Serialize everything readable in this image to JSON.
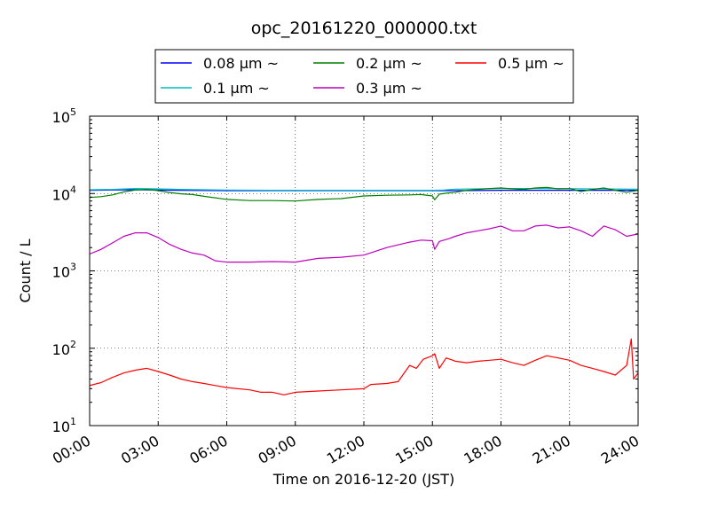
{
  "chart_data": {
    "type": "line",
    "title": "opc_20161220_000000.txt",
    "xlabel": "Time on 2016-12-20 (JST)",
    "ylabel": "Count / L",
    "x_unit": "hours",
    "xlim": [
      0,
      24
    ],
    "ylim": [
      10,
      100000
    ],
    "yscale": "log",
    "grid": true,
    "legend_position": "top-center, outside plot",
    "x_ticks": [
      {
        "v": 0,
        "label": "00:00"
      },
      {
        "v": 3,
        "label": "03:00"
      },
      {
        "v": 6,
        "label": "06:00"
      },
      {
        "v": 9,
        "label": "09:00"
      },
      {
        "v": 12,
        "label": "12:00"
      },
      {
        "v": 15,
        "label": "15:00"
      },
      {
        "v": 18,
        "label": "18:00"
      },
      {
        "v": 21,
        "label": "21:00"
      },
      {
        "v": 24,
        "label": "24:00"
      }
    ],
    "y_ticks": [
      {
        "v": 10,
        "base": "10",
        "exp": "1"
      },
      {
        "v": 100,
        "base": "10",
        "exp": "2"
      },
      {
        "v": 1000,
        "base": "10",
        "exp": "3"
      },
      {
        "v": 10000,
        "base": "10",
        "exp": "4"
      },
      {
        "v": 100000,
        "base": "10",
        "exp": "5"
      }
    ],
    "series": [
      {
        "name": "0.08 μm ~",
        "color": "#0000ff",
        "x": [
          0,
          2,
          4,
          6,
          8,
          10,
          12,
          14,
          16,
          18,
          20,
          22,
          24
        ],
        "y": [
          11000,
          11200,
          11000,
          10900,
          10900,
          10900,
          10900,
          10900,
          10900,
          11000,
          11000,
          11000,
          11000
        ]
      },
      {
        "name": "0.1 μm ~",
        "color": "#00bfbf",
        "x": [
          0,
          1,
          2,
          3,
          4,
          5,
          6,
          8,
          10,
          12,
          14,
          15,
          15.5,
          16,
          18,
          20,
          22,
          24
        ],
        "y": [
          11200,
          11300,
          11600,
          11500,
          11300,
          11200,
          11100,
          11000,
          11000,
          11000,
          11000,
          11000,
          11100,
          11400,
          11600,
          11600,
          11500,
          11400
        ]
      },
      {
        "name": "0.2 μm ~",
        "color": "#008000",
        "x": [
          0,
          0.5,
          1,
          1.5,
          2,
          2.5,
          3,
          3.5,
          4,
          4.5,
          5,
          6,
          7,
          8,
          9,
          10,
          11,
          12,
          13,
          14,
          14.5,
          15,
          15.1,
          15.3,
          15.6,
          16,
          16.5,
          17,
          17.5,
          18,
          18.5,
          19,
          19.5,
          20,
          20.5,
          21,
          21.5,
          22,
          22.5,
          23,
          23.5,
          24
        ],
        "y": [
          8900,
          9100,
          9600,
          10500,
          11100,
          11300,
          10900,
          10300,
          9900,
          9700,
          9200,
          8400,
          8100,
          8100,
          8000,
          8400,
          8600,
          9300,
          9500,
          9600,
          9700,
          9300,
          8300,
          9800,
          10100,
          10400,
          11000,
          11300,
          11600,
          11800,
          11500,
          11300,
          11800,
          12000,
          11500,
          11600,
          10600,
          11300,
          11800,
          11000,
          10400,
          11000
        ]
      },
      {
        "name": "0.3 μm ~",
        "color": "#bf00bf",
        "x": [
          0,
          0.5,
          1,
          1.5,
          2,
          2.5,
          3,
          3.5,
          4,
          4.5,
          5,
          5.5,
          6,
          7,
          8,
          9,
          10,
          11,
          12,
          13,
          14,
          14.5,
          15,
          15.1,
          15.3,
          15.7,
          16,
          16.5,
          17,
          17.5,
          18,
          18.5,
          19,
          19.5,
          20,
          20.5,
          21,
          21.5,
          22,
          22.5,
          23,
          23.5,
          24
        ],
        "y": [
          1650,
          1900,
          2300,
          2800,
          3100,
          3100,
          2700,
          2200,
          1900,
          1700,
          1600,
          1350,
          1300,
          1300,
          1320,
          1300,
          1450,
          1500,
          1600,
          2000,
          2350,
          2500,
          2450,
          1900,
          2400,
          2600,
          2800,
          3100,
          3300,
          3500,
          3800,
          3300,
          3300,
          3800,
          3900,
          3600,
          3700,
          3300,
          2800,
          3800,
          3400,
          2800,
          3000
        ]
      },
      {
        "name": "0.5 μm ~",
        "color": "#ff0000",
        "x": [
          0,
          0.5,
          1,
          1.5,
          2,
          2.5,
          3,
          3.5,
          4,
          4.5,
          5,
          5.5,
          6,
          7,
          7.5,
          8,
          8.5,
          9,
          10,
          11,
          12,
          12.3,
          13,
          13.5,
          14,
          14.3,
          14.6,
          15,
          15.1,
          15.3,
          15.6,
          15.9,
          16,
          16.5,
          17,
          17.5,
          18,
          18.5,
          19,
          19.5,
          20,
          20.5,
          21,
          21.5,
          22,
          22.5,
          23,
          23.5,
          23.7,
          23.8,
          24
        ],
        "y": [
          33,
          36,
          42,
          48,
          52,
          55,
          50,
          45,
          40,
          37,
          35,
          33,
          31,
          29,
          27,
          27,
          25,
          27,
          28,
          29,
          30,
          34,
          35,
          37,
          60,
          55,
          72,
          80,
          85,
          55,
          75,
          70,
          68,
          65,
          68,
          70,
          72,
          65,
          60,
          70,
          80,
          75,
          70,
          60,
          55,
          50,
          45,
          60,
          132,
          40,
          48
        ]
      }
    ]
  }
}
